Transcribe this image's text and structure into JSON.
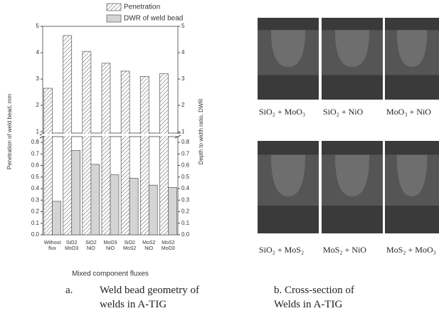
{
  "chart_data": {
    "type": "bar",
    "y_title": "Penetration of weld bead, mm",
    "y2_title": "Depth to width ratio, DWR",
    "x_title": "Mixed component fluxes",
    "categories": [
      "Without\nflux",
      "SiO2\nMoO3",
      "SiO2\nNiO",
      "MoO3\nNiO",
      "SiO2\nMoS2",
      "MoS2\nNiO",
      "MoS2\nMoO3"
    ],
    "series": [
      {
        "name": "Penetration",
        "color": "#555555",
        "values": [
          2.65,
          4.65,
          4.05,
          3.6,
          3.3,
          3.1,
          3.2
        ]
      },
      {
        "name": "DWR of weld bead",
        "color": "#d4d4d4",
        "values": [
          0.29,
          0.73,
          0.61,
          0.52,
          0.49,
          0.43,
          0.41
        ]
      }
    ],
    "segments": [
      {
        "ylim": [
          0,
          0.85
        ],
        "yticks": [
          {
            "value": 0,
            "label": "0.0"
          },
          0.1,
          0.2,
          0.3,
          0.4,
          0.5,
          0.6,
          0.7,
          0.8
        ]
      },
      {
        "ylim": [
          0.95,
          5
        ],
        "yticks": [
          1,
          2,
          3,
          4,
          5
        ]
      }
    ],
    "legend": "upper right",
    "caption": "a.",
    "caption_text": "Weld bead geometry of welds in A-TIG"
  },
  "micrographs": {
    "labels": [
      "SiO₂ + MoO₃",
      "SiO₂ + NiO",
      "MoO₃ + NiO",
      "SiO₂ + MoS₂",
      "MoS₂ + NiO",
      "MoS₂ + MoO₃"
    ],
    "caption": "b. Cross-section of Welds in A-TIG"
  }
}
